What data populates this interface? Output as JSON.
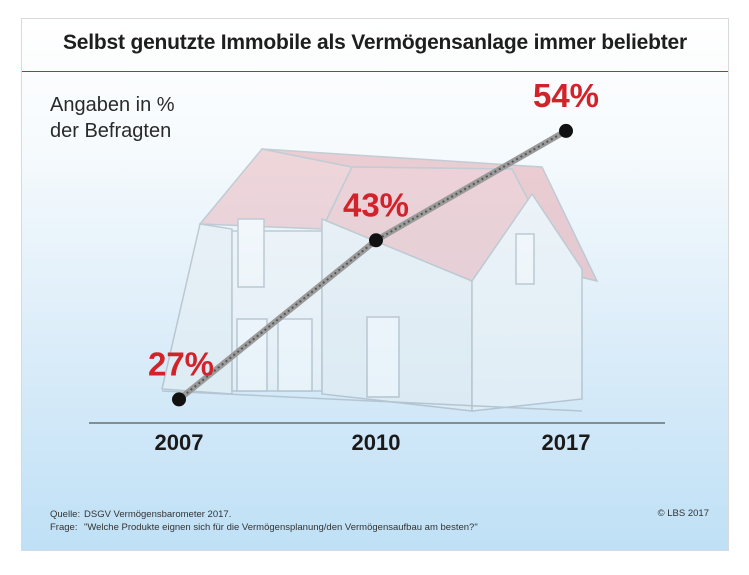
{
  "title": "Selbst genutzte Immobile als Vermögensanlage immer beliebter",
  "subtitle": "Angaben in %\nder Befragten",
  "colors": {
    "accent": "#d2232a",
    "marker": "#111111",
    "line": "#9a9a9a"
  },
  "illustration": "house-sketch",
  "chart_data": {
    "type": "line",
    "title": "Selbst genutzte Immobile als Vermögensanlage immer beliebter",
    "ylabel": "Angaben in % der Befragten",
    "x": [
      "2007",
      "2010",
      "2017"
    ],
    "series": [
      {
        "values": [
          27,
          43,
          54
        ]
      }
    ],
    "data_labels": [
      "27%",
      "43%",
      "54%"
    ],
    "ylim": [
      20,
      56
    ],
    "grid": false
  },
  "footer": {
    "source_label": "Quelle:",
    "source_text": "DSGV Vermögensbarometer 2017.",
    "question_label": "Frage:",
    "question_text": "\"Welche Produkte eignen sich für die Vermögensplanung/den Vermögensaufbau am besten?\"",
    "copyright": "© LBS 2017"
  }
}
